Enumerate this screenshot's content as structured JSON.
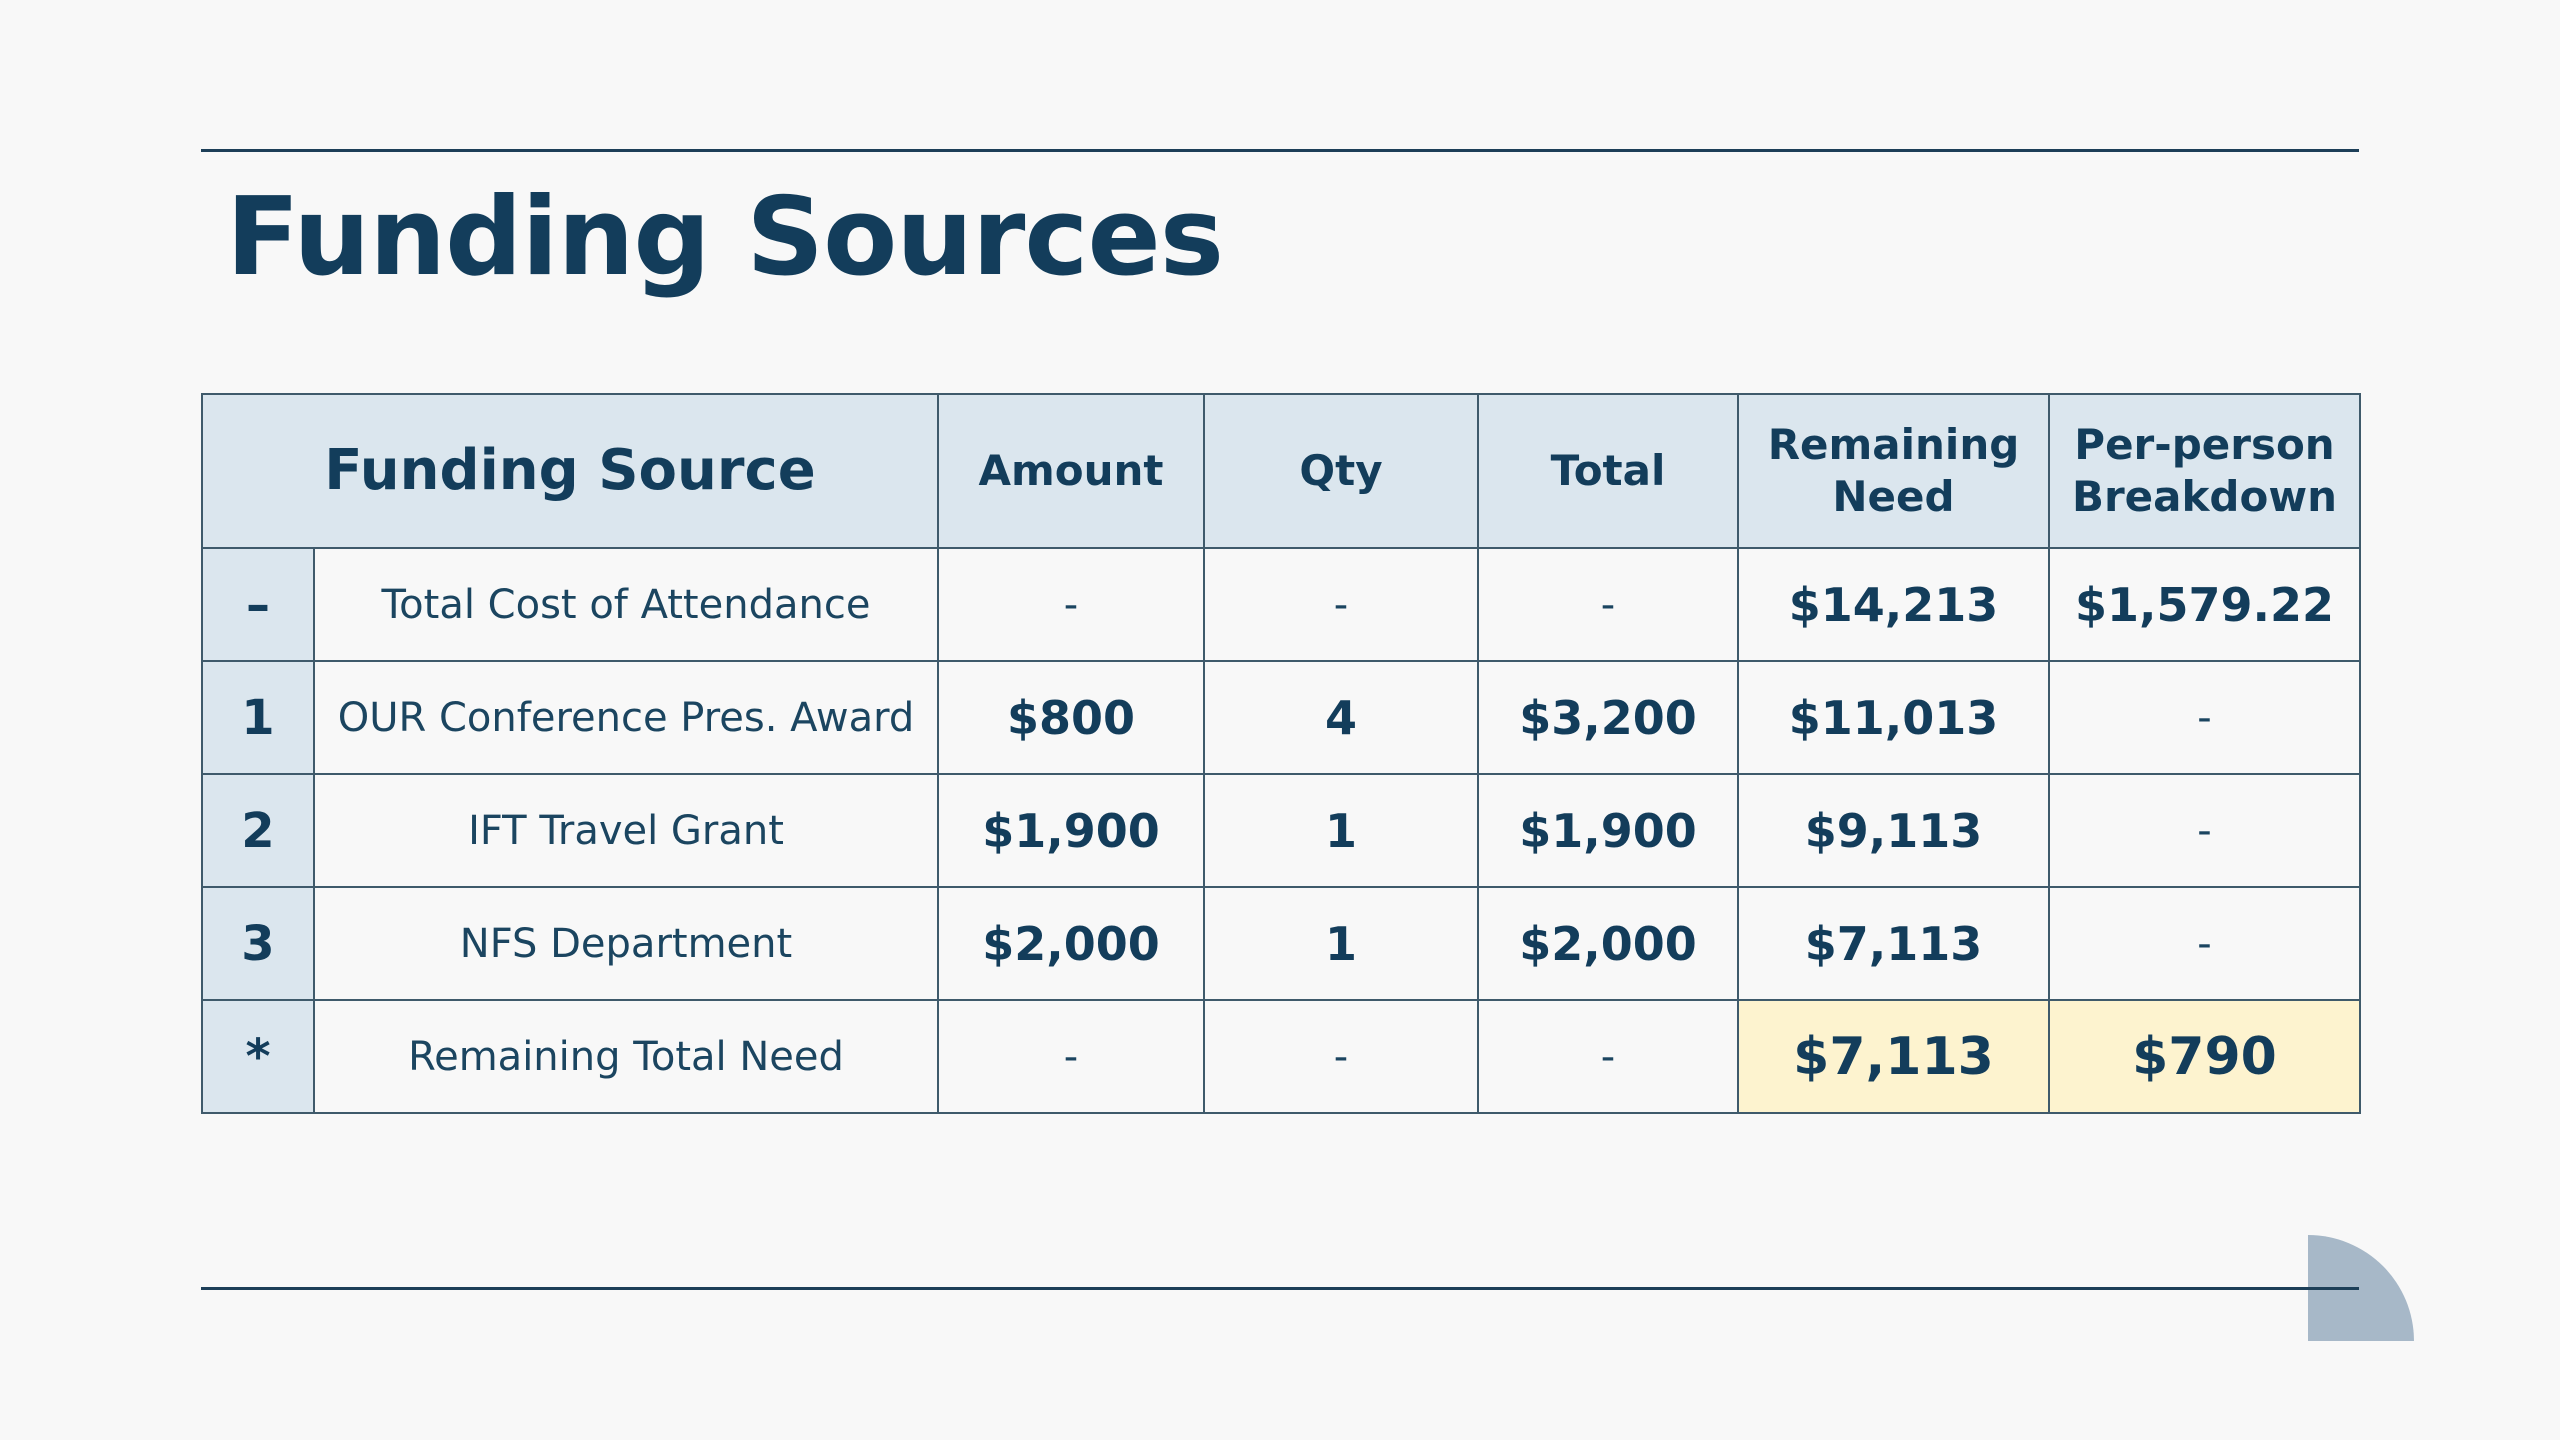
{
  "title": "Funding Sources",
  "table": {
    "headers": {
      "source": "Funding Source",
      "amount": "Amount",
      "qty": "Qty",
      "total": "Total",
      "remaining": "Remaining Need",
      "per_person": "Per-person Breakdown"
    },
    "rows": [
      {
        "idx": "–",
        "source": "Total Cost of Attendance",
        "amount": "-",
        "qty": "-",
        "total": "-",
        "remaining": "$14,213",
        "per_person": "$1,579.22"
      },
      {
        "idx": "1",
        "source": "OUR Conference Pres. Award",
        "amount": "$800",
        "qty": "4",
        "total": "$3,200",
        "remaining": "$11,013",
        "per_person": "-"
      },
      {
        "idx": "2",
        "source": "IFT Travel Grant",
        "amount": "$1,900",
        "qty": "1",
        "total": "$1,900",
        "remaining": "$9,113",
        "per_person": "-"
      },
      {
        "idx": "3",
        "source": "NFS Department",
        "amount": "$2,000",
        "qty": "1",
        "total": "$2,000",
        "remaining": "$7,113",
        "per_person": "-"
      },
      {
        "idx": "*",
        "source": "Remaining Total Need",
        "amount": "-",
        "qty": "-",
        "total": "-",
        "remaining": "$7,113",
        "per_person": "$790"
      }
    ]
  },
  "colors": {
    "primary": "#133d5b",
    "header_bg": "#dbe6ee",
    "highlight_bg": "#fdf3cf",
    "accent_shape": "#a7b8c8",
    "background": "#f8f8f8"
  }
}
